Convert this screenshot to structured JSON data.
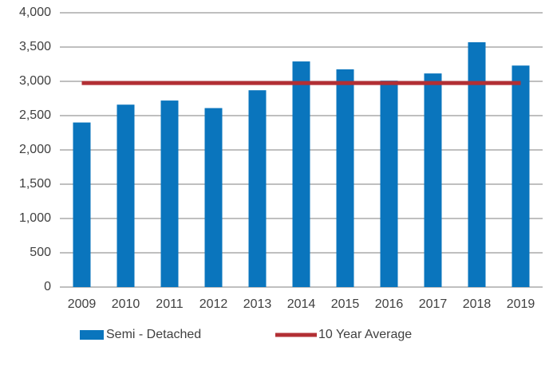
{
  "chart_data": {
    "type": "bar",
    "categories": [
      "2009",
      "2010",
      "2011",
      "2012",
      "2013",
      "2014",
      "2015",
      "2016",
      "2017",
      "2018",
      "2019"
    ],
    "series": [
      {
        "name": "Semi - Detached",
        "type": "bar",
        "color": "#0a75bd",
        "values": [
          2400,
          2660,
          2720,
          2610,
          2870,
          3290,
          3175,
          3010,
          3115,
          3570,
          3230
        ]
      },
      {
        "name": "10 Year Average",
        "type": "line",
        "color": "#b22f34",
        "values": [
          2975,
          2975,
          2975,
          2975,
          2975,
          2975,
          2975,
          2975,
          2975,
          2975,
          2975
        ]
      }
    ],
    "ylim": [
      0,
      4000
    ],
    "yticks": [
      0,
      500,
      {
        "value": 1000,
        "label": "1,000"
      },
      {
        "value": 1500,
        "label": "1,500"
      },
      {
        "value": 2000,
        "label": "2,000"
      },
      {
        "value": 2500,
        "label": "2,500"
      },
      {
        "value": 3000,
        "label": "3,000"
      },
      {
        "value": 3500,
        "label": "3,500"
      },
      {
        "value": 4000,
        "label": "4,000"
      }
    ],
    "grid": true,
    "legend": "bottom"
  }
}
